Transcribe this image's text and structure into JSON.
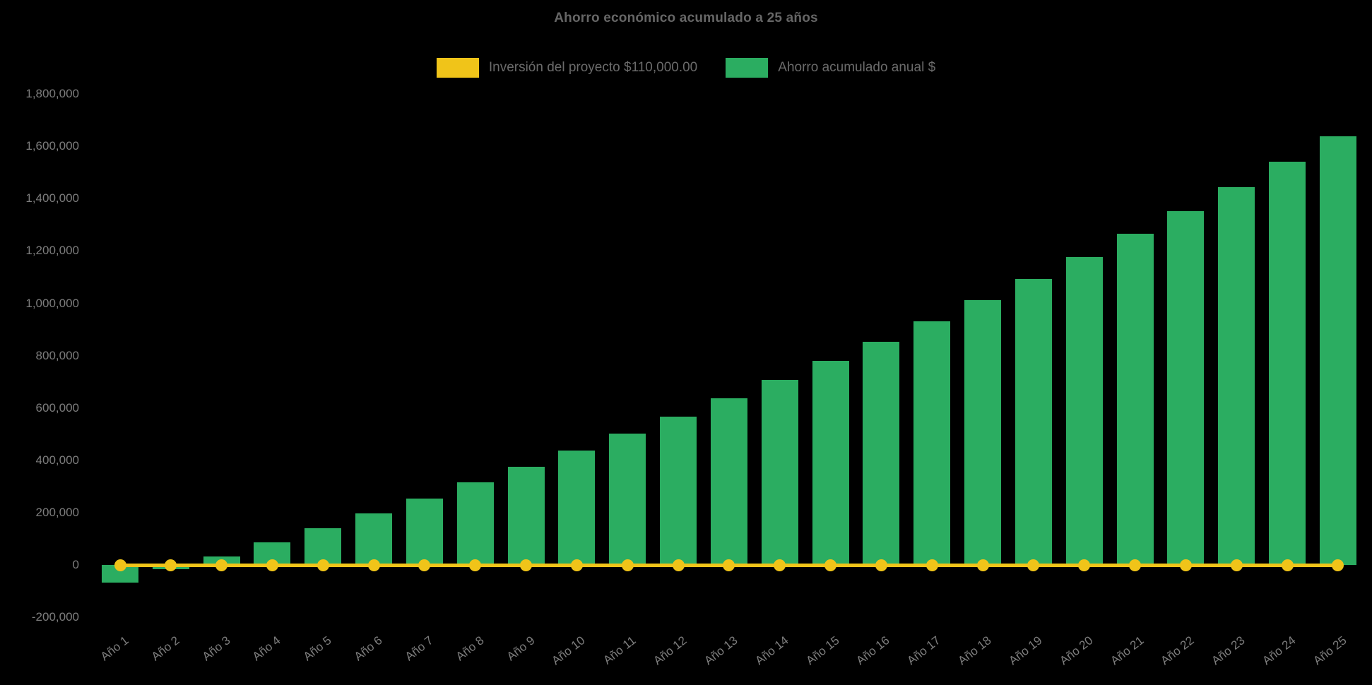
{
  "title": "Ahorro económico acumulado a 25 años",
  "legend": {
    "items": [
      {
        "id": "inversion",
        "label": "Inversión del proyecto $110,000.00",
        "color": "#F0C419",
        "type": "line"
      },
      {
        "id": "ahorro",
        "label": "Ahorro acumulado anual $",
        "color": "#2BAD61",
        "type": "bar"
      }
    ]
  },
  "colors": {
    "background": "#000000",
    "bar": "#2BAD61",
    "line": "#F0C419",
    "title_text": "#666666",
    "legend_text": "#6B6B6B",
    "axis_text": "#7D7D7D"
  },
  "y_axis": {
    "tick_labels": [
      "1,800,000",
      "1,600,000",
      "1,400,000",
      "1,200,000",
      "1,000,000",
      "800,000",
      "600,000",
      "400,000",
      "200,000",
      "0",
      "-200,000"
    ]
  },
  "x_axis": {
    "tick_labels": [
      "Año 1",
      "Año 2",
      "Año 3",
      "Año 4",
      "Año 5",
      "Año 6",
      "Año 7",
      "Año 8",
      "Año 9",
      "Año 10",
      "Año 11",
      "Año 12",
      "Año 13",
      "Año 14",
      "Año 15",
      "Año 16",
      "Año 17",
      "Año 18",
      "Año 19",
      "Año 20",
      "Año 21",
      "Año 22",
      "Año 23",
      "Año 24",
      "Año 25"
    ]
  },
  "chart_data": {
    "type": "bar",
    "title": "Ahorro económico acumulado a 25 años",
    "categories": [
      "Año 1",
      "Año 2",
      "Año 3",
      "Año 4",
      "Año 5",
      "Año 6",
      "Año 7",
      "Año 8",
      "Año 9",
      "Año 10",
      "Año 11",
      "Año 12",
      "Año 13",
      "Año 14",
      "Año 15",
      "Año 16",
      "Año 17",
      "Año 18",
      "Año 19",
      "Año 20",
      "Año 21",
      "Año 22",
      "Año 23",
      "Año 24",
      "Año 25"
    ],
    "series": [
      {
        "name": "Inversión del proyecto $110,000.00",
        "type": "line",
        "color": "#F0C419",
        "point_style": "circle",
        "values": [
          0,
          0,
          0,
          0,
          0,
          0,
          0,
          0,
          0,
          0,
          0,
          0,
          0,
          0,
          0,
          0,
          0,
          0,
          0,
          0,
          0,
          0,
          0,
          0,
          0
        ]
      },
      {
        "name": "Ahorro acumulado anual $",
        "type": "bar",
        "color": "#2BAD61",
        "values": [
          -67000,
          -15000,
          33000,
          86000,
          140000,
          197000,
          253000,
          315000,
          376000,
          437000,
          503000,
          568000,
          638000,
          707000,
          779000,
          854000,
          930000,
          1011000,
          1093000,
          1176000,
          1266000,
          1353000,
          1443000,
          1540000,
          1637000
        ]
      }
    ],
    "ylim": [
      -200000,
      1800000
    ],
    "y_tick_step": 200000,
    "grid": false,
    "legend_position": "top",
    "x_tick_rotation_deg": -38
  }
}
